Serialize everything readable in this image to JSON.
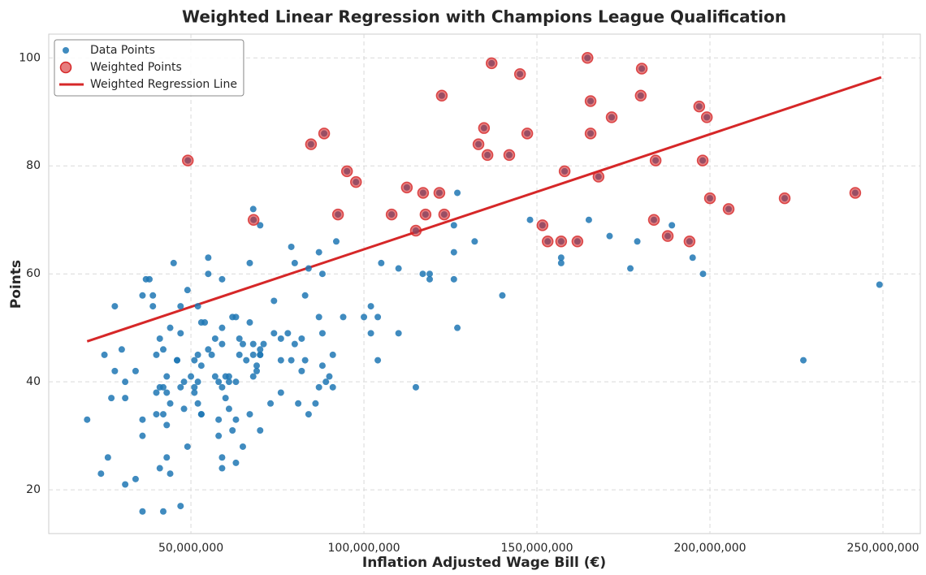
{
  "chart_data": {
    "type": "scatter",
    "title": "Weighted Linear Regression with Champions League Qualification",
    "xlabel": "Inflation Adjusted Wage Bill (€)",
    "ylabel": "Points",
    "xlim": [
      8900000,
      260800000
    ],
    "ylim": [
      11.9,
      104.4
    ],
    "xticks": [
      {
        "value": 50000000,
        "label": "50,000,000"
      },
      {
        "value": 100000000,
        "label": "100,000,000"
      },
      {
        "value": 150000000,
        "label": "150,000,000"
      },
      {
        "value": 200000000,
        "label": "200,000,000"
      },
      {
        "value": 250000000,
        "label": "250,000,000"
      }
    ],
    "yticks": [
      20,
      40,
      60,
      80,
      100
    ],
    "grid": true,
    "legend": "upper left",
    "series": [
      {
        "name": "Data Points",
        "color": "#1f77b4",
        "type": "scatter",
        "x": [
          20000000,
          24000000,
          25000000,
          26000000,
          27000000,
          28000000,
          28000000,
          30000000,
          31000000,
          31000000,
          31000000,
          34000000,
          34000000,
          36000000,
          36000000,
          36000000,
          36000000,
          37000000,
          38000000,
          39000000,
          39000000,
          40000000,
          40000000,
          40000000,
          41000000,
          41000000,
          41000000,
          42000000,
          42000000,
          42000000,
          42000000,
          43000000,
          43000000,
          43000000,
          43000000,
          44000000,
          44000000,
          44000000,
          45000000,
          46000000,
          46000000,
          47000000,
          47000000,
          47000000,
          47000000,
          48000000,
          48000000,
          49000000,
          49000000,
          50000000,
          51000000,
          51000000,
          51000000,
          52000000,
          52000000,
          52000000,
          52000000,
          53000000,
          53000000,
          53000000,
          53000000,
          54000000,
          55000000,
          55000000,
          55000000,
          56000000,
          57000000,
          57000000,
          58000000,
          58000000,
          58000000,
          59000000,
          59000000,
          59000000,
          59000000,
          59000000,
          59000000,
          60000000,
          60000000,
          61000000,
          61000000,
          61000000,
          62000000,
          62000000,
          63000000,
          63000000,
          63000000,
          63000000,
          64000000,
          64000000,
          65000000,
          65000000,
          66000000,
          67000000,
          67000000,
          67000000,
          68000000,
          68000000,
          68000000,
          68000000,
          69000000,
          69000000,
          70000000,
          70000000,
          70000000,
          70000000,
          70000000,
          71000000,
          73000000,
          74000000,
          74000000,
          76000000,
          76000000,
          76000000,
          78000000,
          79000000,
          79000000,
          80000000,
          80000000,
          81000000,
          82000000,
          82000000,
          83000000,
          83000000,
          84000000,
          84000000,
          86000000,
          87000000,
          87000000,
          87000000,
          88000000,
          88000000,
          88000000,
          89000000,
          90000000,
          91000000,
          91000000,
          92000000,
          94000000,
          100000000,
          102000000,
          102000000,
          104000000,
          104000000,
          105000000,
          110000000,
          110000000,
          115000000,
          117000000,
          119000000,
          119000000,
          126000000,
          126000000,
          126000000,
          127000000,
          127000000,
          132000000,
          140000000,
          148000000,
          157000000,
          157000000,
          165000000,
          171000000,
          177000000,
          179000000,
          189000000,
          195000000,
          198000000,
          227000000,
          249000000,
          49100000,
          68100000,
          84700000,
          88500000,
          92500000,
          95100000,
          97700000,
          108000000,
          112400000,
          115000000,
          117100000,
          117800000,
          121800000,
          122500000,
          123200000,
          133100000,
          134700000,
          135700000,
          136900000,
          142000000,
          145100000,
          147200000,
          151600000,
          153100000,
          157000000,
          158000000,
          161700000,
          164600000,
          165500000,
          165500000,
          167800000,
          171600000,
          180000000,
          180300000,
          183800000,
          184300000,
          187800000,
          194100000,
          196900000,
          197900000,
          199100000,
          200000000,
          205400000,
          221600000,
          242000000
        ],
        "y": [
          33,
          23,
          45,
          26,
          37,
          42,
          54,
          46,
          40,
          37,
          21,
          42,
          22,
          33,
          30,
          16,
          56,
          59,
          59,
          56,
          54,
          45,
          38,
          34,
          48,
          24,
          39,
          34,
          39,
          16,
          46,
          41,
          38,
          26,
          32,
          50,
          36,
          23,
          62,
          44,
          44,
          39,
          17,
          54,
          49,
          35,
          40,
          57,
          28,
          41,
          38,
          39,
          44,
          36,
          54,
          45,
          40,
          34,
          51,
          43,
          34,
          51,
          60,
          46,
          63,
          45,
          41,
          48,
          33,
          30,
          40,
          47,
          50,
          59,
          39,
          26,
          24,
          41,
          37,
          35,
          40,
          41,
          31,
          52,
          25,
          52,
          33,
          40,
          45,
          48,
          28,
          47,
          44,
          51,
          62,
          34,
          41,
          45,
          72,
          47,
          42,
          43,
          45,
          46,
          45,
          69,
          31,
          47,
          36,
          49,
          55,
          38,
          48,
          44,
          49,
          44,
          65,
          47,
          62,
          36,
          48,
          42,
          44,
          56,
          61,
          34,
          36,
          39,
          52,
          64,
          49,
          43,
          60,
          40,
          41,
          39,
          45,
          66,
          52,
          52,
          54,
          49,
          44,
          52,
          62,
          49,
          61,
          39,
          60,
          59,
          60,
          64,
          59,
          69,
          75,
          50,
          66,
          56,
          70,
          62,
          63,
          70,
          67,
          61,
          66,
          69,
          63,
          60,
          44,
          58,
          81,
          70,
          84,
          86,
          71,
          79,
          77,
          71,
          76,
          68,
          75,
          71,
          75,
          93,
          71,
          84,
          87,
          82,
          99,
          82,
          97,
          86,
          69,
          66,
          66,
          79,
          66,
          100,
          92,
          86,
          78,
          89,
          93,
          98,
          70,
          81,
          67,
          66,
          91,
          81,
          89,
          74,
          72,
          74,
          75
        ]
      },
      {
        "name": "Weighted Points",
        "color": "#d62728",
        "type": "scatter",
        "x": [
          49100000,
          68100000,
          84700000,
          88500000,
          92500000,
          95100000,
          97700000,
          108000000,
          112400000,
          115000000,
          117100000,
          117800000,
          121800000,
          122500000,
          123200000,
          133100000,
          134700000,
          135700000,
          136900000,
          142000000,
          145100000,
          147200000,
          151600000,
          153100000,
          157000000,
          158000000,
          161700000,
          164600000,
          165500000,
          165500000,
          167800000,
          171600000,
          180000000,
          180300000,
          183800000,
          184300000,
          187800000,
          194100000,
          196900000,
          197900000,
          199100000,
          200000000,
          205400000,
          221600000,
          242000000
        ],
        "y": [
          81,
          70,
          84,
          86,
          71,
          79,
          77,
          71,
          76,
          68,
          75,
          71,
          75,
          93,
          71,
          84,
          87,
          82,
          99,
          82,
          97,
          86,
          69,
          66,
          66,
          79,
          66,
          100,
          92,
          86,
          78,
          89,
          93,
          98,
          70,
          81,
          67,
          66,
          91,
          81,
          89,
          74,
          72,
          74,
          75
        ]
      },
      {
        "name": "Weighted Regression Line",
        "color": "#d62728",
        "type": "line",
        "x": [
          20000000,
          249500000
        ],
        "y": [
          47.5,
          96.4
        ]
      }
    ]
  }
}
